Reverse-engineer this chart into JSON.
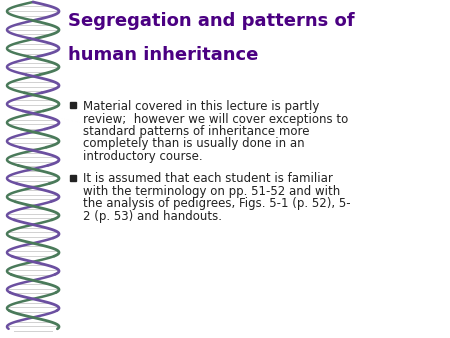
{
  "title_line1": "Segregation and patterns of",
  "title_line2": "human inheritance",
  "title_color": "#4B0082",
  "bullet1_lines": [
    "Material covered in this lecture is partly",
    "review;  however we will cover exceptions to",
    "standard patterns of inheritance more",
    "completely than is usually done in an",
    "introductory course."
  ],
  "bullet2_lines": [
    "It is assumed that each student is familiar",
    "with the terminology on pp. 51-52 and with",
    "the analysis of pedigrees, Figs. 5-1 (p. 52), 5-",
    "2 (p. 53) and handouts."
  ],
  "bullet_color": "#222222",
  "bg_color": "#ffffff",
  "dna_color_purple": "#6B4FA0",
  "dna_color_green": "#4A7A5A",
  "dna_rung_color": "#cccccc",
  "text_fontsize": 8.5,
  "title_fontsize": 13.0
}
